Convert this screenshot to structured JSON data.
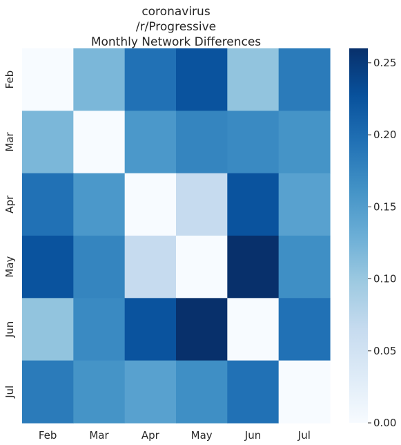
{
  "chart_data": {
    "type": "heatmap",
    "title_lines": [
      "coronavirus",
      "/r/Progressive",
      "Monthly Network Differences"
    ],
    "x_labels": [
      "Feb",
      "Mar",
      "Apr",
      "May",
      "Jun",
      "Jul"
    ],
    "y_labels": [
      "Feb",
      "Mar",
      "Apr",
      "May",
      "Jun",
      "Jul"
    ],
    "matrix": [
      [
        0.0,
        0.12,
        0.195,
        0.225,
        0.105,
        0.185
      ],
      [
        0.12,
        0.0,
        0.155,
        0.175,
        0.17,
        0.16
      ],
      [
        0.195,
        0.155,
        0.0,
        0.065,
        0.225,
        0.145
      ],
      [
        0.225,
        0.175,
        0.065,
        0.0,
        0.26,
        0.165
      ],
      [
        0.105,
        0.17,
        0.225,
        0.26,
        0.0,
        0.195
      ],
      [
        0.185,
        0.16,
        0.145,
        0.165,
        0.195,
        0.0
      ]
    ],
    "colorbar": {
      "min": 0.0,
      "max": 0.26,
      "ticks": [
        "0.00",
        "0.05",
        "0.10",
        "0.15",
        "0.20",
        "0.25"
      ],
      "tick_values": [
        0.0,
        0.05,
        0.1,
        0.15,
        0.2,
        0.25
      ]
    },
    "colormap": "Blues",
    "grid": false
  }
}
